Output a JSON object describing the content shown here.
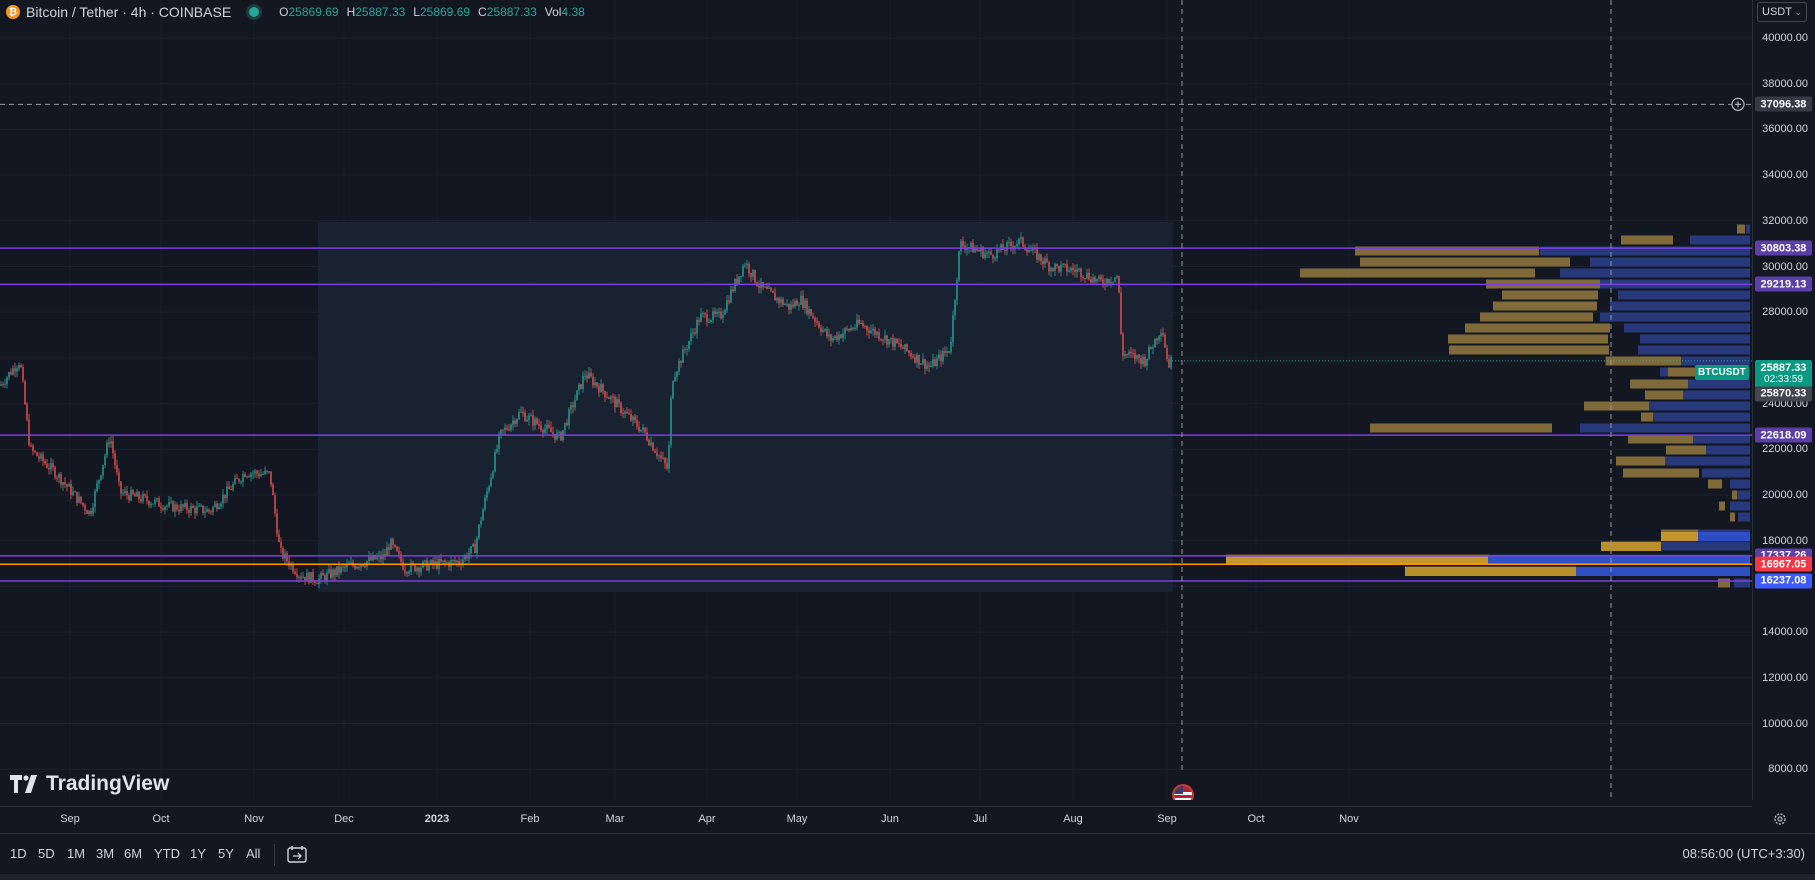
{
  "legend": {
    "title": "Bitcoin / Tether · 4h · COINBASE",
    "open_label": "O",
    "open": "25869.69",
    "high_label": "H",
    "high": "25887.33",
    "low_label": "L",
    "low": "25869.69",
    "close_label": "C",
    "close": "25887.33",
    "vol_label": "Vol",
    "vol": "4.38"
  },
  "currency_button": "USDT",
  "price_axis_ticks": [
    "40000.00",
    "38000.00",
    "36000.00",
    "34000.00",
    "32000.00",
    "30000.00",
    "28000.00",
    "24000.00",
    "22000.00",
    "20000.00",
    "18000.00",
    "14000.00",
    "12000.00",
    "10000.00",
    "8000.00"
  ],
  "crosshair_price": "37096.38",
  "level_tags": [
    {
      "price": "30803.38",
      "color": "#5b3ea8"
    },
    {
      "price": "29219.13",
      "color": "#5b3ea8"
    },
    {
      "price": "22618.09",
      "color": "#5b3ea8"
    },
    {
      "price": "17337.26",
      "color": "#5b3ea8"
    },
    {
      "price": "16967.05",
      "color": "#f23645"
    },
    {
      "price": "16237.08",
      "color": "#3d5afe"
    }
  ],
  "current_price": {
    "symbol": "BTCUSDT",
    "price": "25887.33",
    "countdown": "02:33:59",
    "color": "#089981"
  },
  "poc_price": "25870.33",
  "time_axis_labels": [
    "Sep",
    "Oct",
    "Nov",
    "Dec",
    "2023",
    "Feb",
    "Mar",
    "Apr",
    "May",
    "Jun",
    "Jul",
    "Aug",
    "Sep",
    "Oct",
    "Nov"
  ],
  "timeframes": [
    "1D",
    "5D",
    "1M",
    "3M",
    "6M",
    "YTD",
    "1Y",
    "5Y",
    "All"
  ],
  "clock": "08:56:00 (UTC+3:30)",
  "logo_text": "TradingView",
  "colors": {
    "up": "#26a69a",
    "down": "#ef5350",
    "level_line": "#7b3fe4",
    "orange_line": "#ff9800",
    "vp_up": "#806a3a",
    "vp_down": "#27397a"
  },
  "icons": [
    "bitcoin-icon",
    "market-status-icon",
    "crosshair-plus-icon",
    "us-flag-icon",
    "settings-gear-icon",
    "date-range-icon"
  ]
}
